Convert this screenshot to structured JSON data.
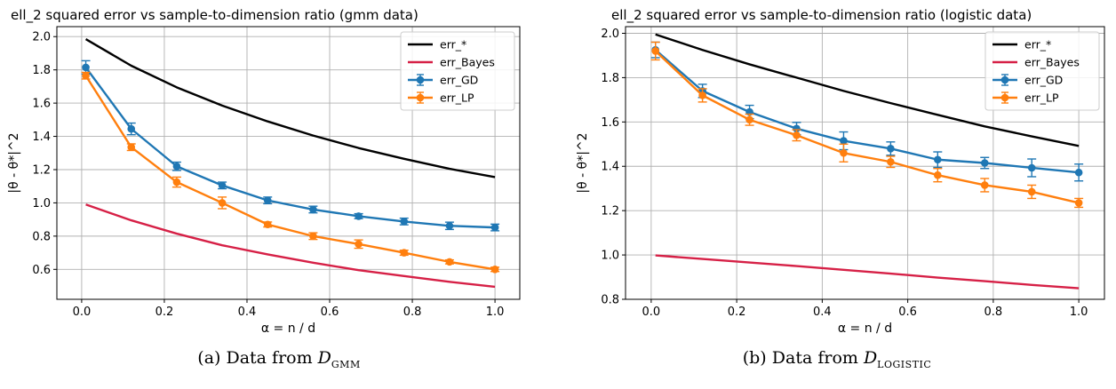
{
  "colors": {
    "err_star": "#000000",
    "err_bayes": "#d62046",
    "err_gd": "#1f77b4",
    "err_lp": "#ff7f0e"
  },
  "captions": [
    {
      "prefix": "(a) Data from ",
      "math": "D",
      "subscript": "GMM"
    },
    {
      "prefix": "(b) Data from ",
      "math": "D",
      "subscript": "LOGISTIC"
    }
  ],
  "chart_data": [
    {
      "type": "line",
      "title": "ell_2 squared error vs sample-to-dimension ratio (gmm data)",
      "xlabel": "α = n / d",
      "ylabel": "|θ - θ*|^2",
      "xlim": [
        -0.06,
        1.06
      ],
      "ylim": [
        0.42,
        2.06
      ],
      "xticks": [
        0.0,
        0.2,
        0.4,
        0.6,
        0.8,
        1.0
      ],
      "xtick_labels": [
        "0.0",
        "0.2",
        "0.4",
        "0.6",
        "0.8",
        "1.0"
      ],
      "yticks": [
        0.6,
        0.8,
        1.0,
        1.2,
        1.4,
        1.6,
        1.8,
        2.0
      ],
      "ytick_labels": [
        "0.6",
        "0.8",
        "1.0",
        "1.2",
        "1.4",
        "1.6",
        "1.8",
        "2.0"
      ],
      "grid": true,
      "legend_position": "top-right",
      "x": [
        0.01,
        0.12,
        0.23,
        0.34,
        0.45,
        0.56,
        0.67,
        0.78,
        0.89,
        1.0
      ],
      "series": [
        {
          "name": "err_*",
          "color": "#000000",
          "marker": false,
          "values": [
            1.985,
            1.825,
            1.695,
            1.585,
            1.49,
            1.405,
            1.33,
            1.265,
            1.205,
            1.155
          ]
        },
        {
          "name": "err_Bayes",
          "color": "#d62046",
          "marker": false,
          "values": [
            0.99,
            0.895,
            0.815,
            0.745,
            0.69,
            0.64,
            0.595,
            0.56,
            0.525,
            0.495
          ]
        },
        {
          "name": "err_GD",
          "color": "#1f77b4",
          "marker": true,
          "values": [
            1.815,
            1.445,
            1.22,
            1.105,
            1.015,
            0.96,
            0.92,
            0.888,
            0.862,
            0.852
          ],
          "errors": [
            0.04,
            0.035,
            0.025,
            0.02,
            0.02,
            0.02,
            0.015,
            0.02,
            0.022,
            0.02
          ]
        },
        {
          "name": "err_LP",
          "color": "#ff7f0e",
          "marker": true,
          "values": [
            1.765,
            1.335,
            1.125,
            1.0,
            0.87,
            0.8,
            0.752,
            0.7,
            0.645,
            0.6
          ],
          "errors": [
            0.02,
            0.02,
            0.03,
            0.035,
            0.015,
            0.02,
            0.025,
            0.015,
            0.012,
            0.013
          ]
        }
      ]
    },
    {
      "type": "line",
      "title": "ell_2 squared error vs sample-to-dimension ratio (logistic data)",
      "xlabel": "α = n / d",
      "ylabel": "|θ - θ*|^2",
      "xlim": [
        -0.06,
        1.06
      ],
      "ylim": [
        0.8,
        2.03
      ],
      "xticks": [
        0.0,
        0.2,
        0.4,
        0.6,
        0.8,
        1.0
      ],
      "xtick_labels": [
        "0.0",
        "0.2",
        "0.4",
        "0.6",
        "0.8",
        "1.0"
      ],
      "yticks": [
        0.8,
        1.0,
        1.2,
        1.4,
        1.6,
        1.8,
        2.0
      ],
      "ytick_labels": [
        "0.8",
        "1.0",
        "1.2",
        "1.4",
        "1.6",
        "1.8",
        "2.0"
      ],
      "grid": true,
      "legend_position": "top-right",
      "x": [
        0.01,
        0.12,
        0.23,
        0.34,
        0.45,
        0.56,
        0.67,
        0.78,
        0.89,
        1.0
      ],
      "series": [
        {
          "name": "err_*",
          "color": "#000000",
          "marker": false,
          "values": [
            1.995,
            1.925,
            1.86,
            1.8,
            1.74,
            1.685,
            1.632,
            1.58,
            1.535,
            1.492
          ]
        },
        {
          "name": "err_Bayes",
          "color": "#d62046",
          "marker": false,
          "values": [
            0.998,
            0.982,
            0.966,
            0.95,
            0.933,
            0.916,
            0.898,
            0.882,
            0.865,
            0.85
          ]
        },
        {
          "name": "err_GD",
          "color": "#1f77b4",
          "marker": true,
          "values": [
            1.925,
            1.74,
            1.645,
            1.57,
            1.515,
            1.48,
            1.43,
            1.415,
            1.393,
            1.372
          ],
          "errors": [
            0.035,
            0.03,
            0.03,
            0.028,
            0.04,
            0.03,
            0.035,
            0.025,
            0.04,
            0.038
          ]
        },
        {
          "name": "err_LP",
          "color": "#ff7f0e",
          "marker": true,
          "values": [
            1.92,
            1.72,
            1.61,
            1.54,
            1.46,
            1.42,
            1.36,
            1.315,
            1.285,
            1.235
          ],
          "errors": [
            0.04,
            0.03,
            0.025,
            0.025,
            0.04,
            0.025,
            0.03,
            0.03,
            0.03,
            0.02
          ]
        }
      ]
    }
  ]
}
